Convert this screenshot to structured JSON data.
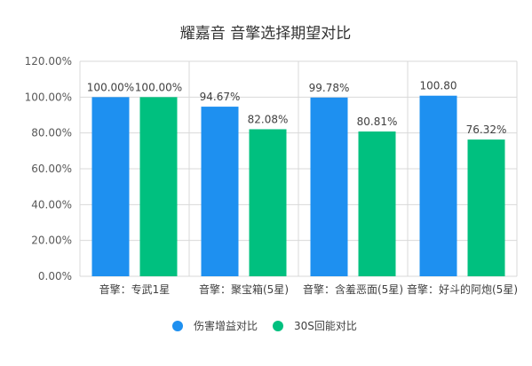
{
  "chart_data": {
    "type": "bar",
    "title": "耀嘉音 音擎选择期望对比",
    "categories": [
      "音擎：专武1星",
      "音擎：聚宝箱(5星)",
      "音擎：含羞恶面(5星)",
      "音擎：好斗的阿炮(5星)"
    ],
    "series": [
      {
        "name": "伤害增益对比",
        "values": [
          100.0,
          94.67,
          99.78,
          100.8
        ],
        "labels": [
          "100.00%",
          "94.67%",
          "99.78%",
          "100.80"
        ],
        "color": "#1E90F0"
      },
      {
        "name": "30S回能对比",
        "values": [
          100.0,
          82.08,
          80.81,
          76.32
        ],
        "labels": [
          "100.00%",
          "82.08%",
          "80.81%",
          "76.32%"
        ],
        "color": "#00C07F"
      }
    ],
    "ylim": [
      0,
      120
    ],
    "yticks": [
      "0.00%",
      "20.00%",
      "40.00%",
      "60.00%",
      "80.00%",
      "100.00%",
      "120.00%"
    ],
    "grid": true,
    "legend_position": "bottom"
  }
}
